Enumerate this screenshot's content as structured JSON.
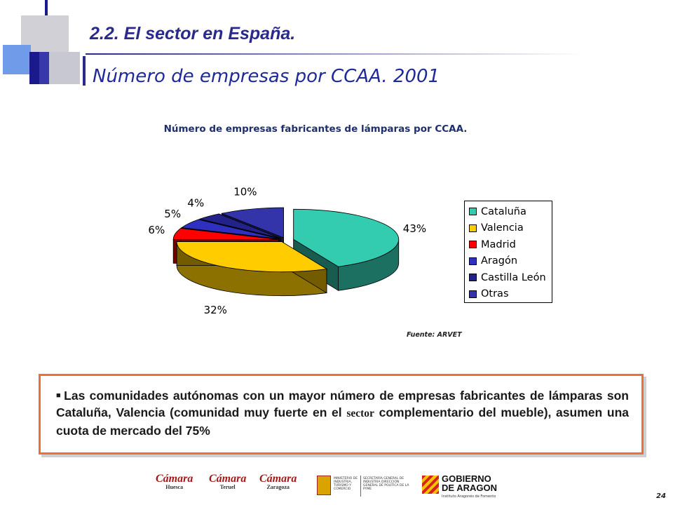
{
  "header": {
    "title": "2.2. El sector en España.",
    "subtitle": "Número de empresas por CCAA. 2001"
  },
  "chart_data": {
    "type": "pie",
    "title": "Número de empresas fabricantes de  lámparas por CCAA.",
    "source": "Fuente: ARVET",
    "legend_position": "right",
    "slices": [
      {
        "name": "Cataluña",
        "value": 43,
        "label": "43%",
        "color": "#33ccb0"
      },
      {
        "name": "Valencia",
        "value": 32,
        "label": "32%",
        "color": "#ffcc00"
      },
      {
        "name": "Madrid",
        "value": 6,
        "label": "6%",
        "color": "#ff0000"
      },
      {
        "name": "Aragón",
        "value": 5,
        "label": "5%",
        "color": "#3030c0"
      },
      {
        "name": "Castilla León",
        "value": 4,
        "label": "4%",
        "color": "#222288"
      },
      {
        "name": "Otras",
        "value": 10,
        "label": "10%",
        "color": "#3333aa"
      }
    ]
  },
  "note": {
    "part1": "Las comunidades autónomas con un mayor número de empresas fabricantes de lámparas son Cataluña, Valencia (comunidad muy fuerte en el",
    "part2": "sector",
    "part3": "complementario del mueble), asumen una cuota de mercado del 75%"
  },
  "footer": {
    "logos": [
      {
        "name": "Cámara",
        "sub": "Huesca"
      },
      {
        "name": "Cámara",
        "sub": "Teruel"
      },
      {
        "name": "Cámara",
        "sub": "Zaragoza"
      }
    ],
    "ministry": {
      "left": "MINISTERIO DE INDUSTRIA, TURISMO Y COMERCIO",
      "right": "SECRETARÍA GENERAL DE INDUSTRIA DIRECCIÓN GENERAL DE POLÍTICA DE LA PYME"
    },
    "government": {
      "line1": "GOBIERNO",
      "line2": "DE ARAGON",
      "line3": "Instituto Aragonés de Fomento"
    }
  },
  "page_number": "24"
}
